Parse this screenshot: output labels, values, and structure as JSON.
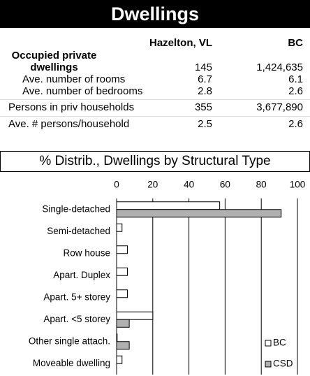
{
  "header": {
    "title": "Dwellings"
  },
  "table": {
    "columns": [
      "Hazelton, VL",
      "BC"
    ],
    "rows": [
      [
        "Occupied private dwellings",
        "145",
        "1,424,635"
      ],
      [
        "Ave. number of rooms",
        "6.7",
        "6.1"
      ],
      [
        "Ave. number of bedrooms",
        "2.8",
        "2.6"
      ],
      [
        "Persons in priv households",
        "355",
        "3,677,890"
      ],
      [
        "Ave. # persons/household",
        "2.5",
        "2.6"
      ]
    ]
  },
  "chart_data": {
    "type": "hbar",
    "title": "% Distrib., Dwellings by Structural Type",
    "categories": [
      "Single-detached",
      "Semi-detached",
      "Row house",
      "Apart. Duplex",
      "Apart. 5+ storey",
      "Apart. <5 storey",
      "Other single attach.",
      "Moveable dwelling"
    ],
    "series": [
      {
        "name": "BC",
        "color": "#ffffff",
        "values": [
          57,
          3,
          6,
          6,
          6,
          20,
          0.3,
          3
        ]
      },
      {
        "name": "CSD",
        "color": "#b0b0b0",
        "values": [
          91,
          0,
          0,
          0,
          0,
          7,
          7,
          0
        ]
      }
    ],
    "xlim": [
      0,
      100
    ],
    "xticks": [
      0,
      20,
      40,
      60,
      80,
      100
    ],
    "grid": true,
    "legend": "lower right"
  }
}
